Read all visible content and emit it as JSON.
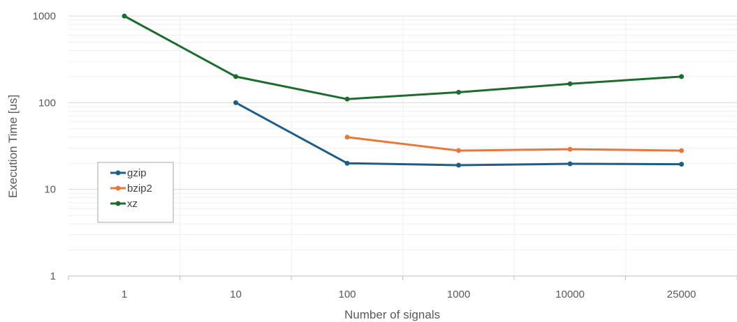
{
  "chart_data": {
    "type": "line",
    "title": "",
    "xlabel": "Number of signals",
    "ylabel": "Execution Time [us]",
    "y_scale": "log",
    "ylim": [
      1,
      1000
    ],
    "grid": true,
    "legend_position": "left-middle",
    "categories": [
      "1",
      "10",
      "100",
      "1000",
      "10000",
      "25000"
    ],
    "y_ticks": [
      "1",
      "10",
      "100",
      "1000"
    ],
    "series": [
      {
        "name": "gzip",
        "color": "#1f5d84",
        "values": [
          null,
          100,
          20,
          19,
          19.7,
          19.5
        ]
      },
      {
        "name": "bzip2",
        "color": "#e8773a",
        "values": [
          null,
          null,
          40,
          28,
          29,
          28
        ]
      },
      {
        "name": "xz",
        "color": "#1e6b2e",
        "values": [
          1000,
          200,
          110,
          132,
          165,
          200
        ]
      }
    ]
  }
}
